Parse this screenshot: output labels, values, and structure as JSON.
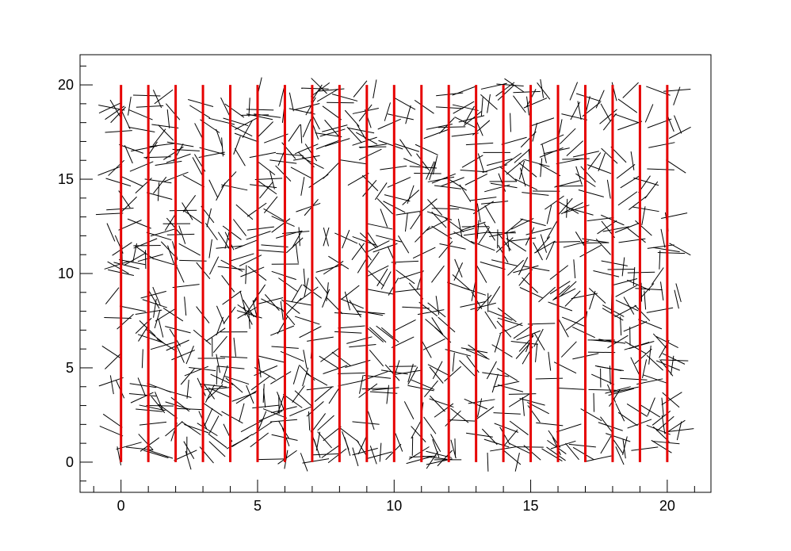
{
  "chart_data": {
    "type": "scatter",
    "title": "",
    "xlabel": "",
    "ylabel": "",
    "xlim": [
      -1.5,
      21.6
    ],
    "ylim": [
      -1.6,
      21.6
    ],
    "grid": false,
    "legend": "none",
    "x_ticks": [
      0,
      5,
      10,
      15,
      20
    ],
    "y_ticks": [
      0,
      5,
      10,
      15,
      20
    ],
    "x_tick_labels": [
      "0",
      "5",
      "10",
      "15",
      "20"
    ],
    "y_tick_labels": [
      "0",
      "5",
      "10",
      "15",
      "20"
    ],
    "vertical_lines": {
      "x": [
        0,
        1,
        2,
        3,
        4,
        5,
        6,
        7,
        8,
        9,
        10,
        11,
        12,
        13,
        14,
        15,
        16,
        17,
        18,
        19,
        20
      ],
      "y_from": 0,
      "y_to": 20,
      "color": "#e60000"
    },
    "needles": {
      "count": 1000,
      "length": 1,
      "x_range": [
        -0.5,
        20.5
      ],
      "y_range": [
        0,
        20
      ],
      "seed": 12345,
      "color": "#000000"
    }
  }
}
